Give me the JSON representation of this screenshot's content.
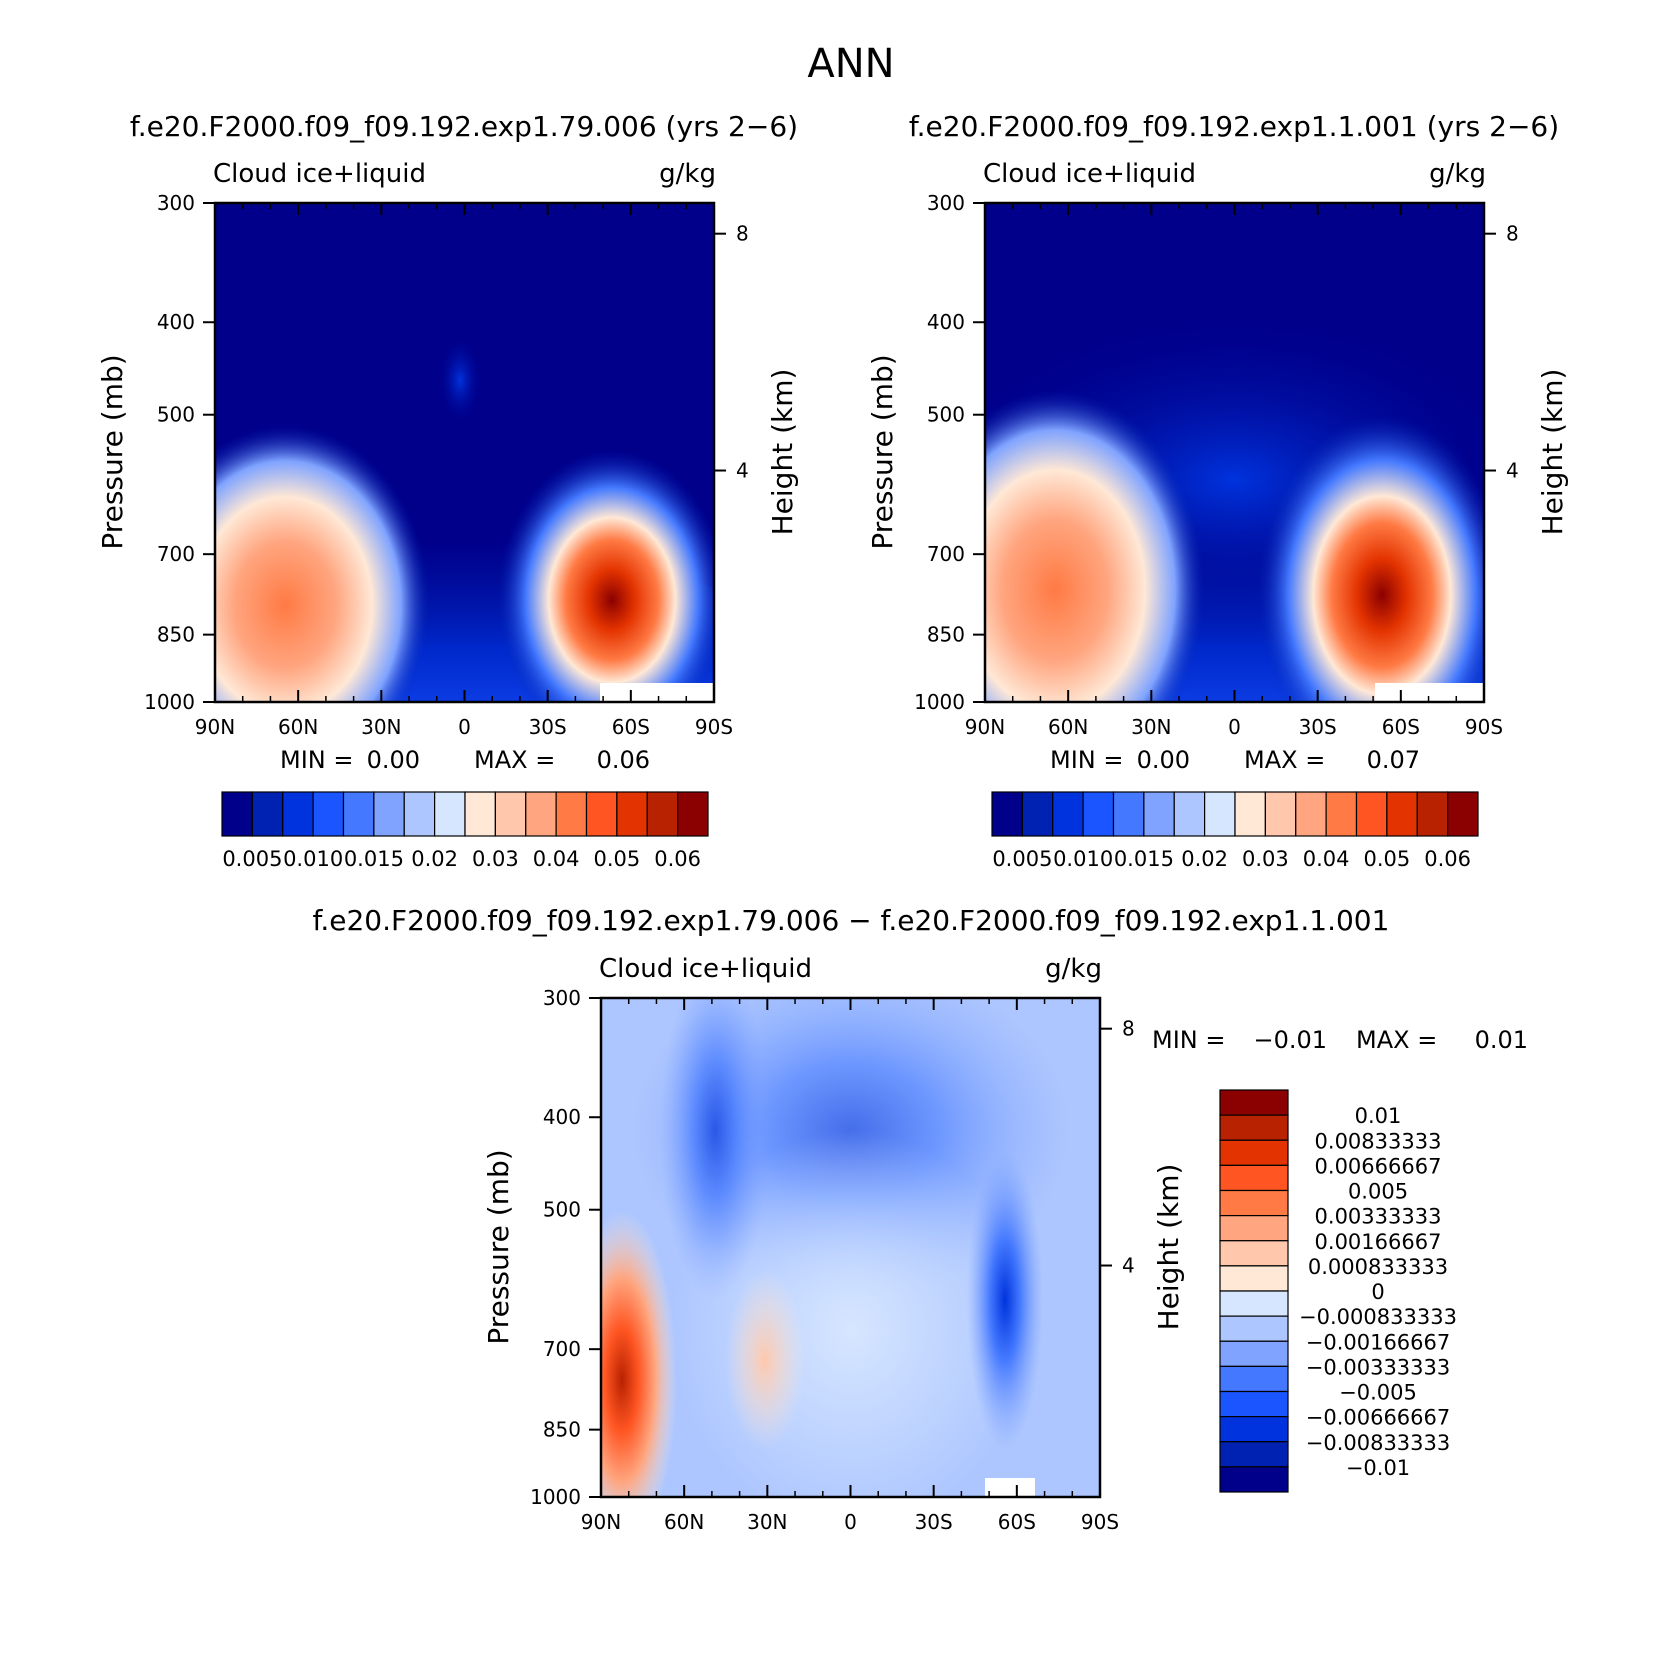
{
  "figure": {
    "title": "ANN",
    "diff_title": "f.e20.F2000.f09_f09.192.exp1.79.006 − f.e20.F2000.f09_f09.192.exp1.1.001"
  },
  "chart_data": [
    {
      "type": "heatmap",
      "title": "f.e20.F2000.f09_f09.192.exp1.79.006 (yrs 2−6)",
      "variable": "Cloud ice+liquid",
      "units": "g/kg",
      "ylabel": "Pressure (mb)",
      "y2label": "Height (km)",
      "x_ticks": [
        "90N",
        "60N",
        "30N",
        "0",
        "30S",
        "60S",
        "90S"
      ],
      "y_ticks": [
        "300",
        "400",
        "500",
        "700",
        "850",
        "1000"
      ],
      "y2_ticks": [
        "8",
        "4"
      ],
      "min_label": "MIN =",
      "min_value": "0.00",
      "max_label": "MAX =",
      "max_value": "0.06",
      "ylim": [
        1000,
        300
      ],
      "xlim": [
        90,
        -90
      ],
      "colorbar_labels": [
        "0.005",
        "0.010",
        "0.015",
        "0.02",
        "0.03",
        "0.04",
        "0.05",
        "0.06"
      ],
      "colors": [
        "#00008b",
        "#0022b3",
        "#0033dd",
        "#1a55ff",
        "#4479ff",
        "#7fa3ff",
        "#adc6ff",
        "#d6e6ff",
        "#ffe8d6",
        "#ffc8ad",
        "#ffa57f",
        "#ff7a44",
        "#ff5522",
        "#e33300",
        "#b82200",
        "#8b0000"
      ],
      "features": [
        {
          "lat": 70,
          "p": 850,
          "value": 0.04
        },
        {
          "lat": -50,
          "p": 850,
          "value": 0.06
        }
      ]
    },
    {
      "type": "heatmap",
      "title": "f.e20.F2000.f09_f09.192.exp1.1.001 (yrs 2−6)",
      "variable": "Cloud ice+liquid",
      "units": "g/kg",
      "ylabel": "Pressure (mb)",
      "y2label": "Height (km)",
      "x_ticks": [
        "90N",
        "60N",
        "30N",
        "0",
        "30S",
        "60S",
        "90S"
      ],
      "y_ticks": [
        "300",
        "400",
        "500",
        "700",
        "850",
        "1000"
      ],
      "y2_ticks": [
        "8",
        "4"
      ],
      "min_label": "MIN =",
      "min_value": "0.00",
      "max_label": "MAX =",
      "max_value": "0.07",
      "ylim": [
        1000,
        300
      ],
      "xlim": [
        90,
        -90
      ],
      "colorbar_labels": [
        "0.005",
        "0.010",
        "0.015",
        "0.02",
        "0.03",
        "0.04",
        "0.05",
        "0.06"
      ],
      "colors": [
        "#00008b",
        "#0022b3",
        "#0033dd",
        "#1a55ff",
        "#4479ff",
        "#7fa3ff",
        "#adc6ff",
        "#d6e6ff",
        "#ffe8d6",
        "#ffc8ad",
        "#ffa57f",
        "#ff7a44",
        "#ff5522",
        "#e33300",
        "#b82200",
        "#8b0000"
      ],
      "features": [
        {
          "lat": 70,
          "p": 850,
          "value": 0.04
        },
        {
          "lat": -50,
          "p": 850,
          "value": 0.07
        }
      ]
    },
    {
      "type": "heatmap",
      "title": "f.e20.F2000.f09_f09.192.exp1.79.006 − f.e20.F2000.f09_f09.192.exp1.1.001",
      "variable": "Cloud ice+liquid",
      "units": "g/kg",
      "ylabel": "Pressure (mb)",
      "y2label": "Height (km)",
      "x_ticks": [
        "90N",
        "60N",
        "30N",
        "0",
        "30S",
        "60S",
        "90S"
      ],
      "y_ticks": [
        "300",
        "400",
        "500",
        "700",
        "850",
        "1000"
      ],
      "y2_ticks": [
        "8",
        "4"
      ],
      "min_label": "MIN =",
      "min_value": "−0.01",
      "max_label": "MAX =",
      "max_value": "0.01",
      "ylim": [
        1000,
        300
      ],
      "xlim": [
        90,
        -90
      ],
      "colorbar_labels": [
        "0.01",
        "0.00833333",
        "0.00666667",
        "0.005",
        "0.00333333",
        "0.00166667",
        "0.000833333",
        "0",
        "−0.000833333",
        "−0.00166667",
        "−0.00333333",
        "−0.005",
        "−0.00666667",
        "−0.00833333",
        "−0.01"
      ],
      "colors": [
        "#8b0000",
        "#b82200",
        "#e33300",
        "#ff5522",
        "#ff7a44",
        "#ffa57f",
        "#ffc8ad",
        "#ffe8d6",
        "#d6e6ff",
        "#adc6ff",
        "#7fa3ff",
        "#4479ff",
        "#1a55ff",
        "#0033dd",
        "#0022b3",
        "#00008b"
      ]
    }
  ]
}
